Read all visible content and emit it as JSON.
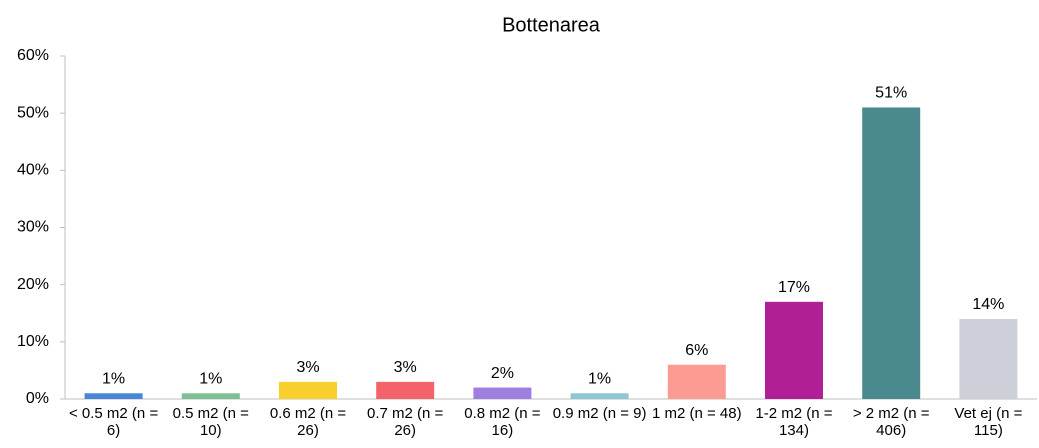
{
  "chart_data": {
    "type": "bar",
    "title": "Bottenarea",
    "categories": [
      "< 0.5 m2 (n = 6)",
      "0.5 m2 (n = 10)",
      "0.6 m2 (n = 26)",
      "0.7 m2 (n = 26)",
      "0.8 m2 (n = 16)",
      "0.9 m2 (n = 9)",
      "1 m2 (n = 48)",
      "1-2 m2 (n = 134)",
      "> 2 m2 (n = 406)",
      "Vet ej (n = 115)"
    ],
    "values": [
      1,
      1,
      3,
      3,
      2,
      1,
      6,
      17,
      51,
      14
    ],
    "value_labels": [
      "1%",
      "1%",
      "3%",
      "3%",
      "2%",
      "1%",
      "6%",
      "17%",
      "51%",
      "14%"
    ],
    "colors": [
      "#4a86d8",
      "#7fbf95",
      "#f8cf2c",
      "#f4636a",
      "#9e7fe0",
      "#8fc6d4",
      "#fb9b92",
      "#b01f96",
      "#4a8a8f",
      "#cdd0d9"
    ],
    "ylim": [
      0,
      60
    ],
    "yticks": [
      {
        "value": 0,
        "label": "0%"
      },
      {
        "value": 10,
        "label": "10%"
      },
      {
        "value": 20,
        "label": "20%"
      },
      {
        "value": 30,
        "label": "30%"
      },
      {
        "value": 40,
        "label": "40%"
      },
      {
        "value": 50,
        "label": "50%"
      },
      {
        "value": 60,
        "label": "60%"
      }
    ],
    "grid": false
  }
}
